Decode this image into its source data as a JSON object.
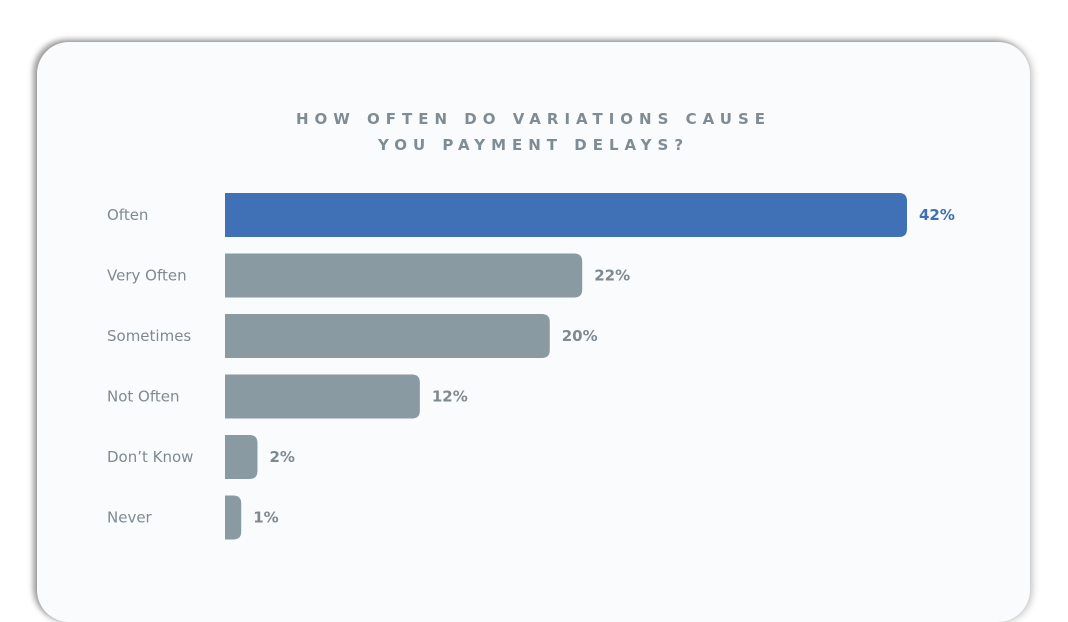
{
  "chart_data": {
    "type": "bar",
    "orientation": "horizontal",
    "title_lines": [
      "HOW OFTEN DO VARIATIONS CAUSE",
      "YOU PAYMENT DELAYS?"
    ],
    "categories": [
      "Often",
      "Very Often",
      "Sometimes",
      "Not Often",
      "Don’t Know",
      "Never"
    ],
    "values": [
      42,
      22,
      20,
      12,
      2,
      1
    ],
    "value_labels": [
      "42%",
      "22%",
      "20%",
      "12%",
      "2%",
      "1%"
    ],
    "xlim": [
      0,
      42
    ],
    "grid": false,
    "colors": {
      "highlight": "#4070b5",
      "default": "#8a9aa2",
      "label": "#7f8a90",
      "highlight_label": "#3f6fb4"
    },
    "highlight_index": 0
  }
}
